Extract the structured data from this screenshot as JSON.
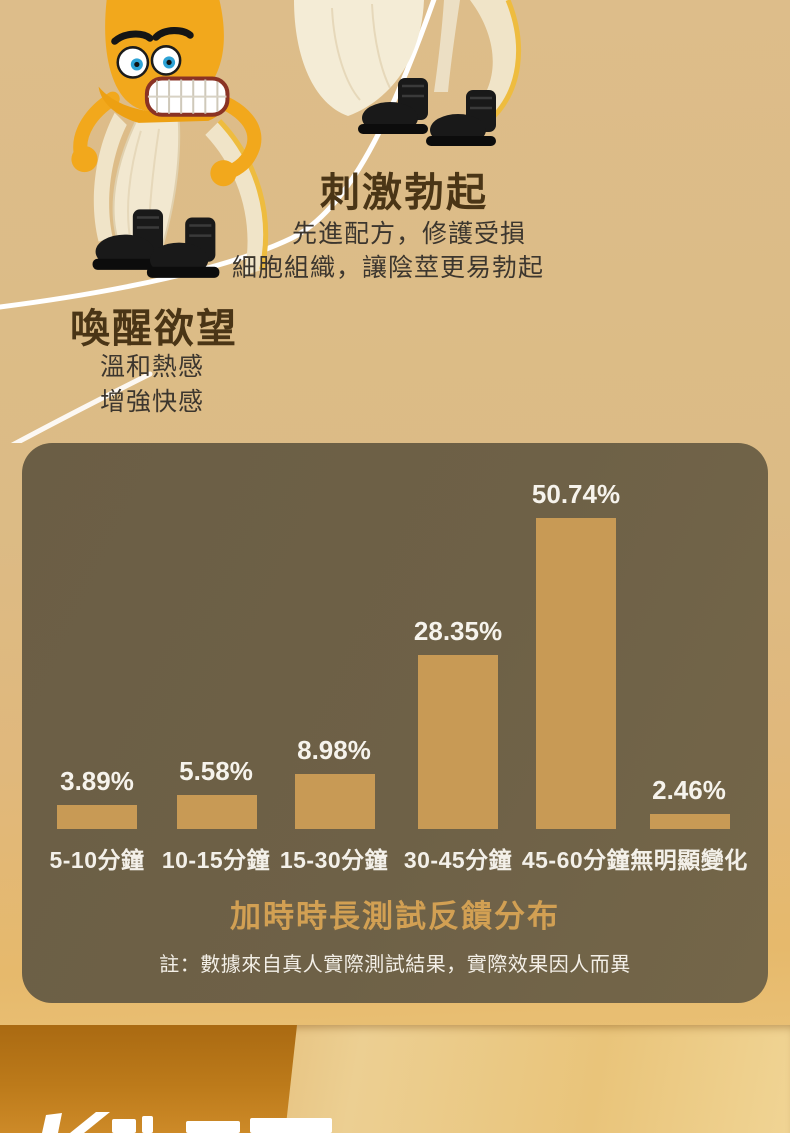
{
  "hero": {
    "section1": {
      "title": "刺激勃起",
      "line1": "先進配方，修護受損",
      "line2": "細胞組織，讓陰莖更易勃起"
    },
    "section2": {
      "title": "喚醒欲望",
      "line1": "溫和熱感",
      "line2": "增強快感"
    }
  },
  "chart_data": {
    "type": "bar",
    "title": "加時時長測試反饋分布",
    "note": "註：數據來自真人實際測試結果，實際效果因人而異",
    "categories": [
      "5-10分鐘",
      "10-15分鐘",
      "15-30分鐘",
      "30-45分鐘",
      "45-60分鐘",
      "無明顯變化"
    ],
    "values": [
      3.89,
      5.58,
      8.98,
      28.35,
      50.74,
      2.46
    ],
    "value_labels": [
      "3.89%",
      "5.58%",
      "8.98%",
      "28.35%",
      "50.74%",
      "2.46%"
    ],
    "xlabel": "",
    "ylabel": "",
    "ylim": [
      0,
      55
    ],
    "grid": false,
    "legend": false,
    "colors": {
      "panel_background": "#6e6147",
      "bar": "#c89a55",
      "title": "#d2a053",
      "value_label": "#f6f3ec",
      "category_label": "#f3f0e9"
    }
  },
  "page_colors": {
    "background_top": "#ddbd8a",
    "background_gold": "#edc87e",
    "heading": "#4a3516",
    "body_text": "#3c362e",
    "bottom_left_block": "#bc7a1a"
  }
}
